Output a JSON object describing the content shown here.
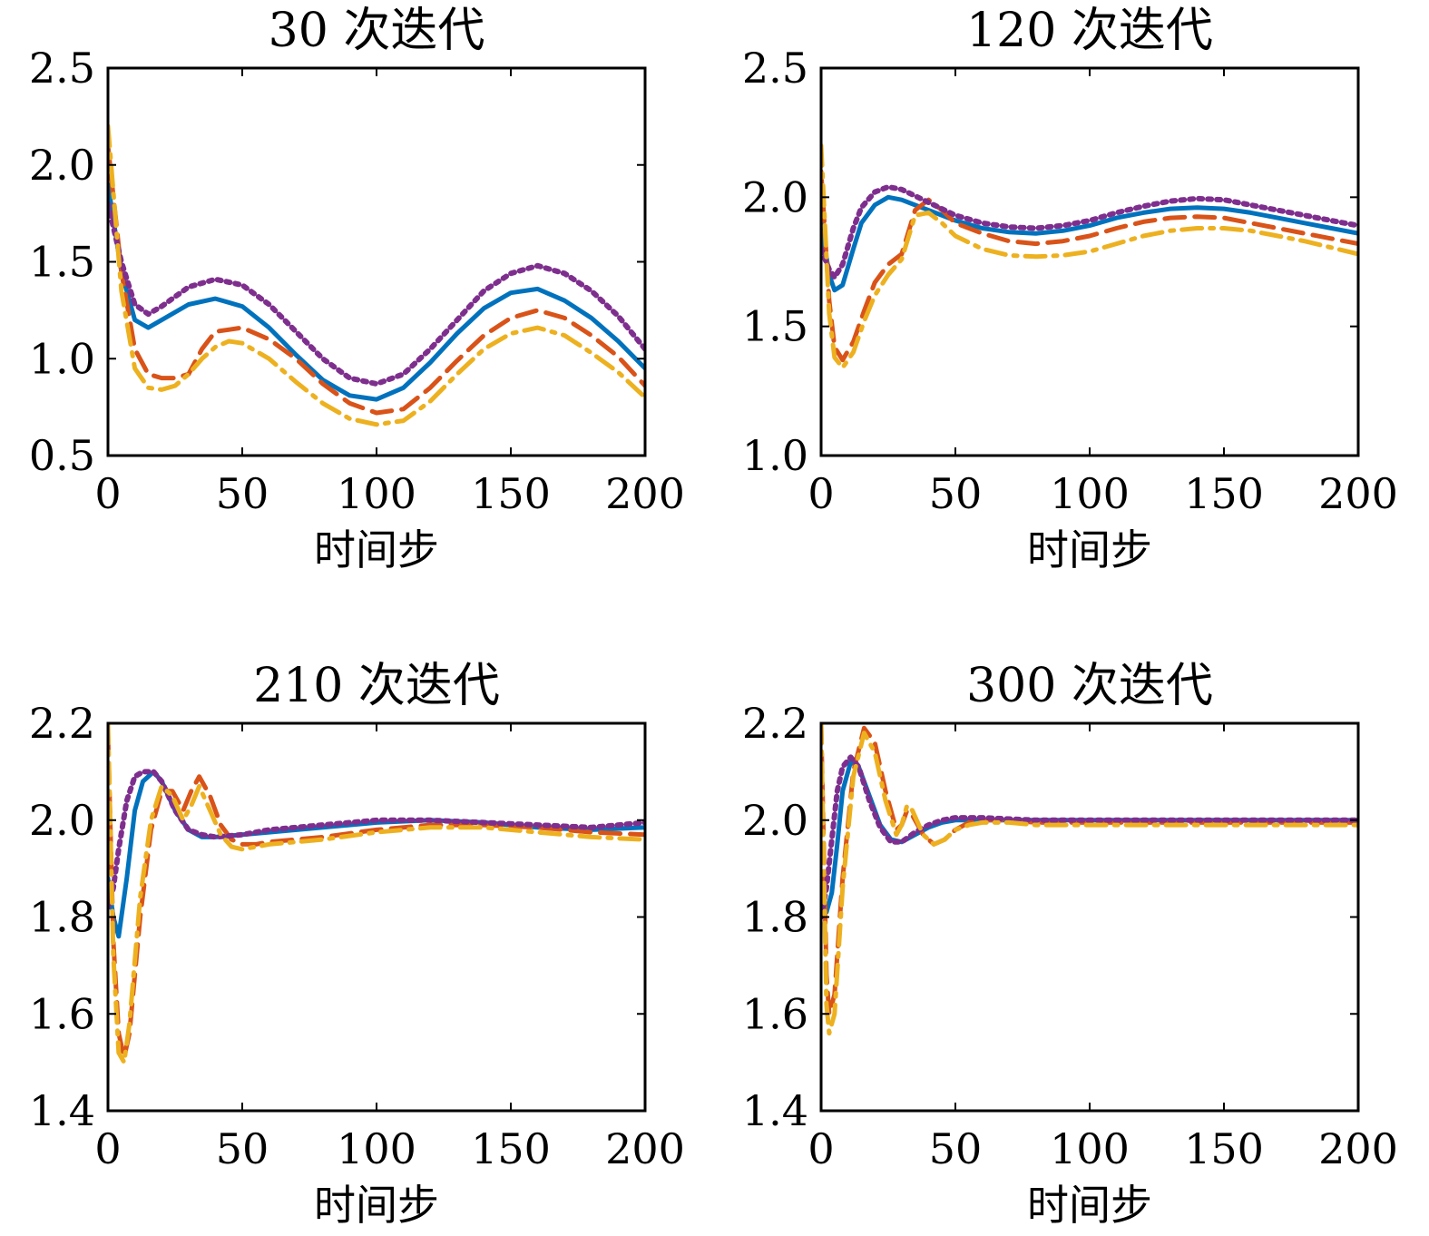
{
  "chart_data": [
    {
      "type": "line",
      "title": "30 次迭代",
      "xlabel": "时间步",
      "ylabel": "",
      "xlim": [
        0,
        200
      ],
      "ylim": [
        0.5,
        2.5
      ],
      "xticks": [
        "0",
        "50",
        "100",
        "150",
        "200"
      ],
      "yticks": [
        "0.5",
        "1.0",
        "1.5",
        "2.0",
        "2.5"
      ],
      "series": [
        {
          "style": "solid",
          "color": "#0072BD",
          "x": [
            0,
            5,
            10,
            15,
            20,
            30,
            40,
            50,
            60,
            70,
            80,
            90,
            100,
            110,
            120,
            130,
            140,
            150,
            160,
            170,
            180,
            190,
            200
          ],
          "y": [
            1.9,
            1.45,
            1.2,
            1.16,
            1.2,
            1.28,
            1.31,
            1.27,
            1.16,
            1.02,
            0.89,
            0.81,
            0.79,
            0.85,
            0.98,
            1.13,
            1.26,
            1.34,
            1.36,
            1.3,
            1.21,
            1.09,
            0.95
          ]
        },
        {
          "style": "dashed",
          "color": "#D95319",
          "x": [
            0,
            5,
            10,
            15,
            20,
            25,
            30,
            35,
            40,
            50,
            60,
            70,
            80,
            90,
            100,
            110,
            120,
            130,
            140,
            150,
            160,
            170,
            180,
            190,
            200
          ],
          "y": [
            2.1,
            1.45,
            1.05,
            0.92,
            0.9,
            0.9,
            0.92,
            1.05,
            1.14,
            1.16,
            1.1,
            1.0,
            0.87,
            0.77,
            0.72,
            0.74,
            0.85,
            0.99,
            1.12,
            1.21,
            1.25,
            1.21,
            1.12,
            1.01,
            0.86
          ]
        },
        {
          "style": "dotted",
          "color": "#7E2F8E",
          "x": [
            0,
            5,
            10,
            15,
            20,
            30,
            40,
            50,
            60,
            70,
            80,
            90,
            100,
            110,
            120,
            130,
            140,
            150,
            160,
            170,
            180,
            190,
            200
          ],
          "y": [
            1.8,
            1.5,
            1.28,
            1.23,
            1.27,
            1.37,
            1.41,
            1.38,
            1.28,
            1.14,
            1.0,
            0.9,
            0.87,
            0.92,
            1.05,
            1.2,
            1.35,
            1.44,
            1.48,
            1.44,
            1.35,
            1.22,
            1.05
          ]
        },
        {
          "style": "dashdot",
          "color": "#EDB120",
          "x": [
            0,
            5,
            10,
            15,
            20,
            25,
            30,
            35,
            40,
            45,
            50,
            60,
            70,
            80,
            90,
            100,
            110,
            120,
            130,
            140,
            150,
            160,
            170,
            180,
            190,
            200
          ],
          "y": [
            2.2,
            1.35,
            0.95,
            0.85,
            0.84,
            0.86,
            0.92,
            1.0,
            1.06,
            1.09,
            1.08,
            1.0,
            0.88,
            0.77,
            0.69,
            0.66,
            0.68,
            0.78,
            0.92,
            1.05,
            1.13,
            1.16,
            1.12,
            1.03,
            0.93,
            0.8
          ]
        }
      ]
    },
    {
      "type": "line",
      "title": "120 次迭代",
      "xlabel": "时间步",
      "ylabel": "",
      "xlim": [
        0,
        200
      ],
      "ylim": [
        1.0,
        2.5
      ],
      "xticks": [
        "0",
        "50",
        "100",
        "150",
        "200"
      ],
      "yticks": [
        "1.0",
        "1.5",
        "2.0",
        "2.5"
      ],
      "series": [
        {
          "style": "solid",
          "color": "#0072BD",
          "x": [
            0,
            3,
            5,
            8,
            12,
            15,
            20,
            25,
            30,
            40,
            50,
            60,
            70,
            80,
            90,
            100,
            110,
            120,
            130,
            140,
            150,
            160,
            170,
            180,
            190,
            200
          ],
          "y": [
            1.9,
            1.7,
            1.64,
            1.66,
            1.8,
            1.9,
            1.97,
            2.0,
            1.99,
            1.95,
            1.91,
            1.88,
            1.865,
            1.86,
            1.87,
            1.89,
            1.92,
            1.94,
            1.955,
            1.96,
            1.955,
            1.94,
            1.92,
            1.9,
            1.88,
            1.86
          ]
        },
        {
          "style": "dashed",
          "color": "#D95319",
          "x": [
            0,
            3,
            5,
            8,
            12,
            16,
            20,
            25,
            30,
            35,
            40,
            45,
            50,
            60,
            70,
            80,
            90,
            100,
            110,
            120,
            130,
            140,
            150,
            160,
            170,
            180,
            190,
            200
          ],
          "y": [
            2.1,
            1.6,
            1.42,
            1.37,
            1.44,
            1.56,
            1.67,
            1.74,
            1.78,
            1.95,
            1.99,
            1.95,
            1.9,
            1.86,
            1.83,
            1.82,
            1.83,
            1.85,
            1.88,
            1.905,
            1.92,
            1.925,
            1.92,
            1.9,
            1.88,
            1.86,
            1.84,
            1.82
          ]
        },
        {
          "style": "dotted",
          "color": "#7E2F8E",
          "x": [
            0,
            3,
            5,
            8,
            12,
            15,
            20,
            25,
            30,
            40,
            50,
            60,
            70,
            80,
            90,
            100,
            110,
            120,
            130,
            140,
            150,
            160,
            170,
            180,
            190,
            200
          ],
          "y": [
            1.8,
            1.72,
            1.69,
            1.74,
            1.88,
            1.96,
            2.02,
            2.04,
            2.03,
            1.98,
            1.93,
            1.9,
            1.885,
            1.88,
            1.89,
            1.91,
            1.94,
            1.965,
            1.985,
            1.995,
            1.99,
            1.97,
            1.95,
            1.93,
            1.91,
            1.89
          ]
        },
        {
          "style": "dashdot",
          "color": "#EDB120",
          "x": [
            0,
            3,
            5,
            8,
            12,
            16,
            20,
            25,
            30,
            35,
            40,
            45,
            50,
            60,
            70,
            80,
            90,
            100,
            110,
            120,
            130,
            140,
            150,
            160,
            170,
            180,
            190,
            200
          ],
          "y": [
            2.2,
            1.55,
            1.38,
            1.34,
            1.4,
            1.52,
            1.62,
            1.7,
            1.76,
            1.93,
            1.94,
            1.9,
            1.85,
            1.8,
            1.775,
            1.77,
            1.775,
            1.79,
            1.82,
            1.85,
            1.87,
            1.88,
            1.88,
            1.87,
            1.85,
            1.83,
            1.805,
            1.78
          ]
        }
      ]
    },
    {
      "type": "line",
      "title": "210 次迭代",
      "xlabel": "时间步",
      "ylabel": "",
      "xlim": [
        0,
        200
      ],
      "ylim": [
        1.4,
        2.2
      ],
      "xticks": [
        "0",
        "50",
        "100",
        "150",
        "200"
      ],
      "yticks": [
        "1.4",
        "1.6",
        "1.8",
        "2.0",
        "2.2"
      ],
      "series": [
        {
          "style": "solid",
          "color": "#0072BD",
          "x": [
            0,
            2,
            4,
            7,
            10,
            13,
            17,
            20,
            25,
            30,
            35,
            40,
            50,
            60,
            80,
            100,
            120,
            140,
            160,
            180,
            200
          ],
          "y": [
            1.88,
            1.8,
            1.76,
            1.88,
            2.02,
            2.08,
            2.1,
            2.08,
            2.02,
            1.98,
            1.965,
            1.965,
            1.97,
            1.975,
            1.985,
            1.995,
            2.0,
            1.995,
            1.985,
            1.98,
            1.985
          ]
        },
        {
          "style": "dashed",
          "color": "#D95319",
          "x": [
            0,
            2,
            4,
            6,
            8,
            12,
            16,
            20,
            24,
            28,
            31,
            34,
            38,
            42,
            46,
            50,
            55,
            60,
            70,
            80,
            100,
            120,
            140,
            160,
            180,
            200
          ],
          "y": [
            2.18,
            1.75,
            1.56,
            1.51,
            1.56,
            1.8,
            1.98,
            2.06,
            2.06,
            2.02,
            2.06,
            2.09,
            2.05,
            1.99,
            1.96,
            1.95,
            1.95,
            1.955,
            1.96,
            1.965,
            1.98,
            1.99,
            1.99,
            1.985,
            1.975,
            1.97
          ]
        },
        {
          "style": "dotted",
          "color": "#7E2F8E",
          "x": [
            0,
            2,
            4,
            7,
            10,
            13,
            17,
            20,
            25,
            30,
            35,
            40,
            50,
            60,
            80,
            100,
            120,
            140,
            160,
            180,
            200
          ],
          "y": [
            1.82,
            1.86,
            1.94,
            2.04,
            2.09,
            2.1,
            2.1,
            2.08,
            2.02,
            1.98,
            1.97,
            1.965,
            1.97,
            1.98,
            1.99,
            2.0,
            2.0,
            1.995,
            1.99,
            1.985,
            1.995
          ]
        },
        {
          "style": "dashdot",
          "color": "#EDB120",
          "x": [
            0,
            2,
            4,
            6,
            8,
            12,
            16,
            20,
            24,
            28,
            31,
            34,
            38,
            42,
            46,
            50,
            55,
            60,
            70,
            80,
            100,
            120,
            140,
            160,
            180,
            200
          ],
          "y": [
            2.2,
            1.72,
            1.52,
            1.5,
            1.58,
            1.84,
            2.0,
            2.07,
            2.05,
            2.0,
            2.03,
            2.07,
            2.02,
            1.97,
            1.945,
            1.94,
            1.945,
            1.95,
            1.955,
            1.96,
            1.975,
            1.985,
            1.985,
            1.975,
            1.965,
            1.96
          ]
        }
      ]
    },
    {
      "type": "line",
      "title": "300 次迭代",
      "xlabel": "时间步",
      "ylabel": "",
      "xlim": [
        0,
        200
      ],
      "ylim": [
        1.4,
        2.2
      ],
      "xticks": [
        "0",
        "50",
        "100",
        "150",
        "200"
      ],
      "yticks": [
        "1.4",
        "1.6",
        "1.8",
        "2.0",
        "2.2"
      ],
      "series": [
        {
          "style": "solid",
          "color": "#0072BD",
          "x": [
            0,
            2,
            4,
            6,
            8,
            11,
            14,
            18,
            22,
            26,
            30,
            35,
            40,
            45,
            50,
            60,
            80,
            100,
            150,
            200
          ],
          "y": [
            1.84,
            1.81,
            1.85,
            1.95,
            2.06,
            2.12,
            2.11,
            2.05,
            1.99,
            1.96,
            1.955,
            1.97,
            1.985,
            1.995,
            2.0,
            2.0,
            2.0,
            2.0,
            2.0,
            2.0
          ]
        },
        {
          "style": "dashed",
          "color": "#D95319",
          "x": [
            0,
            2,
            3,
            5,
            8,
            12,
            16,
            20,
            24,
            28,
            30,
            32,
            34,
            38,
            42,
            46,
            50,
            55,
            60,
            70,
            80,
            100,
            150,
            200
          ],
          "y": [
            2.2,
            1.68,
            1.6,
            1.64,
            1.88,
            2.1,
            2.19,
            2.16,
            2.06,
            1.98,
            1.99,
            2.02,
            2.01,
            1.97,
            1.95,
            1.96,
            1.98,
            1.995,
            2.0,
            2.0,
            1.995,
            1.995,
            1.995,
            1.995
          ]
        },
        {
          "style": "dotted",
          "color": "#7E2F8E",
          "x": [
            0,
            2,
            4,
            6,
            8,
            11,
            14,
            18,
            22,
            26,
            30,
            35,
            40,
            45,
            50,
            60,
            80,
            100,
            150,
            200
          ],
          "y": [
            1.8,
            1.86,
            1.96,
            2.06,
            2.11,
            2.13,
            2.11,
            2.04,
            1.985,
            1.955,
            1.955,
            1.975,
            1.99,
            2.0,
            2.005,
            2.005,
            2.0,
            2.0,
            2.0,
            2.0
          ]
        },
        {
          "style": "dashdot",
          "color": "#EDB120",
          "x": [
            0,
            2,
            3,
            5,
            8,
            12,
            16,
            20,
            24,
            28,
            30,
            32,
            34,
            38,
            42,
            46,
            50,
            55,
            60,
            70,
            80,
            100,
            150,
            200
          ],
          "y": [
            2.2,
            1.62,
            1.56,
            1.6,
            1.86,
            2.09,
            2.18,
            2.14,
            2.04,
            1.97,
            1.99,
            2.03,
            2.02,
            1.97,
            1.95,
            1.96,
            1.98,
            1.99,
            1.995,
            1.995,
            1.99,
            1.99,
            1.99,
            1.99
          ]
        }
      ]
    }
  ]
}
